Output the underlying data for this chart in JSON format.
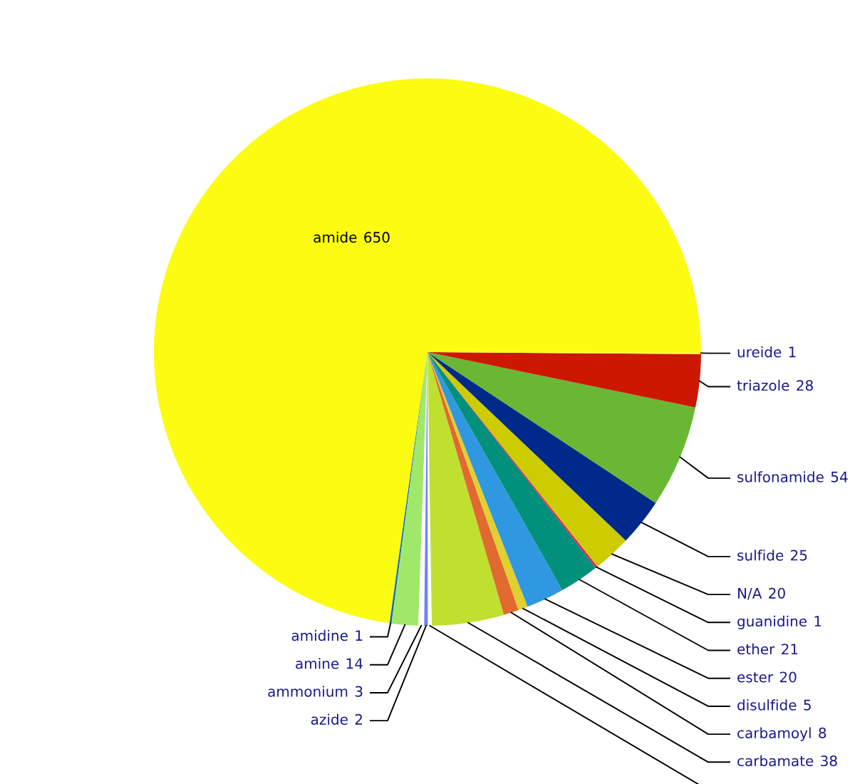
{
  "chart_data": {
    "type": "pie",
    "categories": [
      "amide",
      "amidine",
      "amine",
      "ammonium",
      "azide",
      null,
      "carbamate",
      "carbamoyl",
      "disulfide",
      "ester",
      "ether",
      "guanidine",
      "N/A",
      "sulfide",
      "sulfonamide",
      "triazole",
      "ureide"
    ],
    "values": [
      650,
      1,
      14,
      3,
      2,
      2,
      38,
      8,
      5,
      20,
      21,
      1,
      20,
      25,
      54,
      28,
      1
    ],
    "colors": [
      "#fcfc12",
      "#0a64c8",
      "#a0e86a",
      "#ffffff",
      "#7080ff",
      "#ffffff",
      "#c0e030",
      "#e06a30",
      "#e0d030",
      "#3098e0",
      "#00907c",
      "#ff1060",
      "#cccc00",
      "#002a8a",
      "#68b834",
      "#cc1800",
      "#ffff40"
    ],
    "value_labels": [
      "650",
      "1",
      "14",
      "3",
      "2",
      null,
      "38",
      "8",
      "5",
      "20",
      "21",
      "1",
      "20",
      "25",
      "54",
      "28",
      "1"
    ]
  }
}
